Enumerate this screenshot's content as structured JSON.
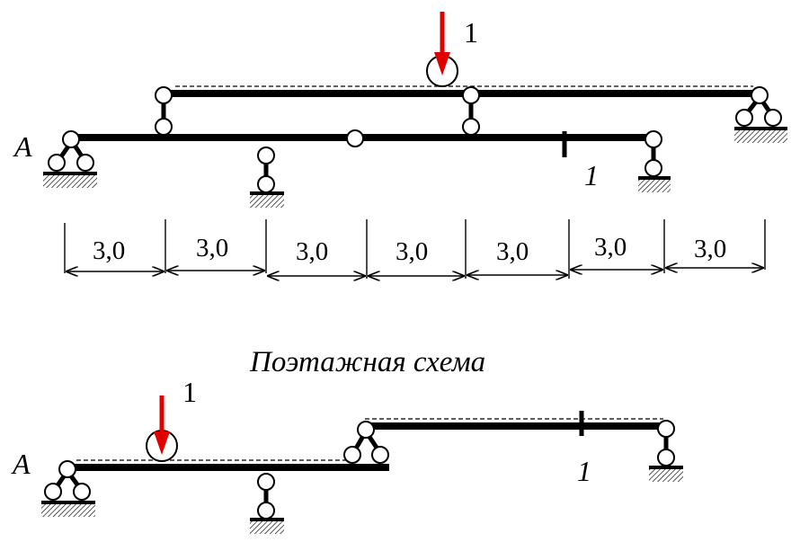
{
  "top_scheme": {
    "support_label": "A",
    "load_label": "1",
    "section_label": "1"
  },
  "dimensions": {
    "segments": [
      "3,0",
      "3,0",
      "3,0",
      "3,0",
      "3,0",
      "3,0",
      "3,0"
    ]
  },
  "bottom_scheme": {
    "title": "Поэтажная схема",
    "support_label": "A",
    "load_label": "1",
    "section_label": "1"
  },
  "colors": {
    "load_arrow": "#e00000",
    "beam": "#000000"
  }
}
